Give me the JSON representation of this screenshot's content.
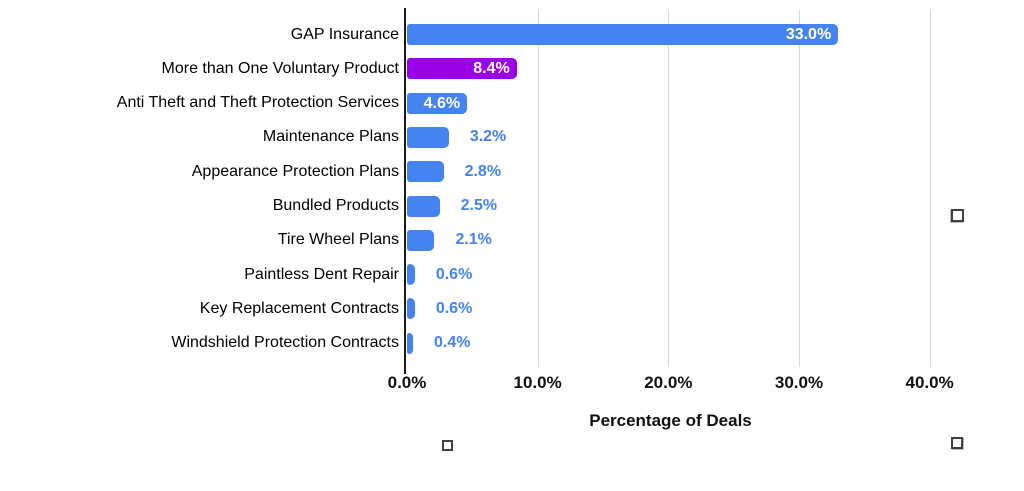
{
  "chart_data": {
    "type": "bar",
    "orientation": "horizontal",
    "title": "",
    "xlabel": "Percentage of Deals",
    "ylabel": "",
    "categories": [
      "GAP Insurance",
      "More than One Voluntary Product",
      "Anti Theft and Theft Protection Services",
      "Maintenance Plans",
      "Appearance Protection Plans",
      "Bundled Products",
      "Tire Wheel Plans",
      "Paintless Dent Repair",
      "Key Replacement Contracts",
      "Windshield Protection Contracts"
    ],
    "values": [
      33.0,
      8.4,
      4.6,
      3.2,
      2.8,
      2.5,
      2.1,
      0.6,
      0.6,
      0.4
    ],
    "value_labels": [
      "33.0%",
      "8.4%",
      "4.6%",
      "3.2%",
      "2.8%",
      "2.5%",
      "2.1%",
      "0.6%",
      "0.6%",
      "0.4%"
    ],
    "highlight_index": 1,
    "xlim": [
      0,
      45
    ],
    "xticks": [
      {
        "value": 0,
        "label": "0.0%"
      },
      {
        "value": 10,
        "label": "10.0%"
      },
      {
        "value": 20,
        "label": "20.0%"
      },
      {
        "value": 30,
        "label": "30.0%"
      },
      {
        "value": 40,
        "label": "40.0%"
      }
    ],
    "grid": "vertical",
    "legend": "none",
    "colors": {
      "bar_default": "#4583F1",
      "bar_highlight": "#9C00EA",
      "label_inside": "#FFFFFF",
      "label_outside": "#4583F1",
      "axis_line": "#1B1B1B",
      "gridline": "#D8D8D8",
      "category_text": "#000000",
      "tick_text": "#111111"
    }
  }
}
